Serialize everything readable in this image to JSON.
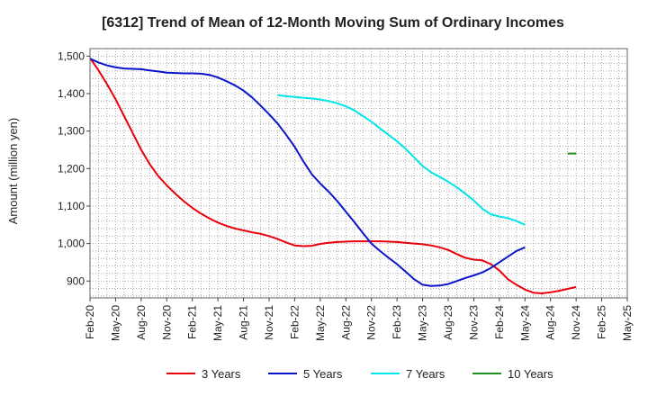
{
  "chart_data": {
    "type": "line",
    "title": "[6312]  Trend of Mean of 12-Month Moving Sum of Ordinary Incomes",
    "xlabel": "",
    "ylabel": "Amount (million yen)",
    "ylim": [
      855,
      1520
    ],
    "yticks": [
      900,
      1000,
      1100,
      1200,
      1300,
      1400,
      1500
    ],
    "ytick_labels": [
      "900",
      "1,000",
      "1,100",
      "1,200",
      "1,300",
      "1,400",
      "1,500"
    ],
    "x_range": [
      0,
      63
    ],
    "xticks": [
      0,
      3,
      6,
      9,
      12,
      15,
      18,
      21,
      24,
      27,
      30,
      33,
      36,
      39,
      42,
      45,
      48,
      51,
      54,
      57,
      60,
      63
    ],
    "xtick_labels": [
      "Feb-20",
      "May-20",
      "Aug-20",
      "Nov-20",
      "Feb-21",
      "May-21",
      "Aug-21",
      "Nov-21",
      "Feb-22",
      "May-22",
      "Aug-22",
      "Nov-22",
      "Feb-23",
      "May-23",
      "Aug-23",
      "Nov-23",
      "Feb-24",
      "May-24",
      "Aug-24",
      "Nov-24",
      "Feb-25",
      "May-25"
    ],
    "grid": true,
    "legend_position": "bottom",
    "series": [
      {
        "name": "3 Years",
        "color": "#e8000b",
        "points": [
          [
            0,
            1495
          ],
          [
            1,
            1462
          ],
          [
            2,
            1425
          ],
          [
            3,
            1385
          ],
          [
            4,
            1340
          ],
          [
            5,
            1295
          ],
          [
            6,
            1250
          ],
          [
            7,
            1212
          ],
          [
            8,
            1180
          ],
          [
            9,
            1155
          ],
          [
            10,
            1133
          ],
          [
            11,
            1113
          ],
          [
            12,
            1095
          ],
          [
            13,
            1080
          ],
          [
            14,
            1067
          ],
          [
            15,
            1056
          ],
          [
            16,
            1047
          ],
          [
            17,
            1040
          ],
          [
            18,
            1035
          ],
          [
            19,
            1030
          ],
          [
            20,
            1026
          ],
          [
            21,
            1020
          ],
          [
            22,
            1012
          ],
          [
            23,
            1003
          ],
          [
            24,
            995
          ],
          [
            25,
            993
          ],
          [
            26,
            994
          ],
          [
            27,
            999
          ],
          [
            28,
            1002
          ],
          [
            29,
            1004
          ],
          [
            30,
            1005
          ],
          [
            31,
            1006
          ],
          [
            32,
            1006
          ],
          [
            33,
            1006
          ],
          [
            34,
            1006
          ],
          [
            35,
            1005
          ],
          [
            36,
            1004
          ],
          [
            37,
            1002
          ],
          [
            38,
            1000
          ],
          [
            39,
            998
          ],
          [
            40,
            995
          ],
          [
            41,
            990
          ],
          [
            42,
            983
          ],
          [
            43,
            972
          ],
          [
            44,
            962
          ],
          [
            45,
            957
          ],
          [
            46,
            955
          ],
          [
            47,
            945
          ],
          [
            48,
            928
          ],
          [
            49,
            905
          ],
          [
            50,
            890
          ],
          [
            51,
            877
          ],
          [
            52,
            869
          ],
          [
            53,
            867
          ],
          [
            54,
            870
          ],
          [
            55,
            874
          ],
          [
            56,
            879
          ],
          [
            57,
            884
          ]
        ]
      },
      {
        "name": "5 Years",
        "color": "#0a14c8",
        "points": [
          [
            0,
            1493
          ],
          [
            1,
            1483
          ],
          [
            2,
            1475
          ],
          [
            3,
            1470
          ],
          [
            4,
            1467
          ],
          [
            5,
            1466
          ],
          [
            6,
            1465
          ],
          [
            7,
            1462
          ],
          [
            8,
            1459
          ],
          [
            9,
            1456
          ],
          [
            10,
            1455
          ],
          [
            11,
            1454
          ],
          [
            12,
            1454
          ],
          [
            13,
            1453
          ],
          [
            14,
            1450
          ],
          [
            15,
            1443
          ],
          [
            16,
            1433
          ],
          [
            17,
            1422
          ],
          [
            18,
            1408
          ],
          [
            19,
            1390
          ],
          [
            20,
            1368
          ],
          [
            21,
            1345
          ],
          [
            22,
            1320
          ],
          [
            23,
            1290
          ],
          [
            24,
            1258
          ],
          [
            25,
            1220
          ],
          [
            26,
            1185
          ],
          [
            27,
            1160
          ],
          [
            28,
            1138
          ],
          [
            29,
            1113
          ],
          [
            30,
            1085
          ],
          [
            31,
            1057
          ],
          [
            32,
            1028
          ],
          [
            33,
            1000
          ],
          [
            34,
            980
          ],
          [
            35,
            962
          ],
          [
            36,
            945
          ],
          [
            37,
            925
          ],
          [
            38,
            905
          ],
          [
            39,
            890
          ],
          [
            40,
            887
          ],
          [
            41,
            888
          ],
          [
            42,
            892
          ],
          [
            43,
            900
          ],
          [
            44,
            908
          ],
          [
            45,
            915
          ],
          [
            46,
            923
          ],
          [
            47,
            935
          ],
          [
            48,
            950
          ],
          [
            49,
            965
          ],
          [
            50,
            980
          ],
          [
            51,
            990
          ]
        ]
      },
      {
        "name": "7 Years",
        "color": "#00e5e8",
        "points": [
          [
            0,
            1396
          ],
          [
            1,
            1393
          ],
          [
            2,
            1391
          ],
          [
            3,
            1389
          ],
          [
            4,
            1387
          ],
          [
            5,
            1384
          ],
          [
            6,
            1380
          ],
          [
            7,
            1374
          ],
          [
            8,
            1366
          ],
          [
            9,
            1355
          ],
          [
            10,
            1340
          ],
          [
            11,
            1325
          ],
          [
            12,
            1307
          ],
          [
            13,
            1290
          ],
          [
            14,
            1273
          ],
          [
            15,
            1253
          ],
          [
            16,
            1230
          ],
          [
            17,
            1207
          ],
          [
            18,
            1190
          ],
          [
            19,
            1178
          ],
          [
            20,
            1165
          ],
          [
            21,
            1150
          ],
          [
            22,
            1133
          ],
          [
            23,
            1115
          ],
          [
            24,
            1093
          ],
          [
            25,
            1078
          ],
          [
            26,
            1072
          ],
          [
            27,
            1068
          ],
          [
            28,
            1060
          ],
          [
            29,
            1050
          ]
        ]
      },
      {
        "name": "10 Years",
        "color": "#1f8f1f",
        "points": [
          [
            0,
            1240
          ],
          [
            1,
            1240
          ]
        ]
      }
    ],
    "series_start_index": [
      0,
      0,
      22,
      56
    ]
  }
}
